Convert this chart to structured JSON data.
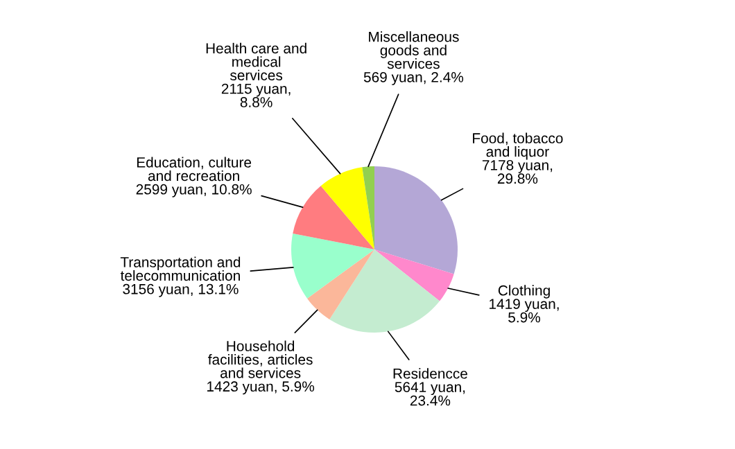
{
  "chart_data": {
    "type": "pie",
    "categories": [
      "Food, tobacco\nand liquor",
      "Clothing",
      "Residencce",
      "Household\nfacilities, articles\nand services",
      "Transportation and\ntelecommunication",
      "Education, culture\nand recreation",
      "Health care and\nmedical\nservices",
      "Miscellaneous\ngoods and\nservices"
    ],
    "values": [
      7178,
      1419,
      5641,
      1423,
      3156,
      2599,
      2115,
      569
    ],
    "value_labels": [
      "7178 yuan,\n29.8%",
      "1419 yuan,\n5.9%",
      "5641 yuan,\n23.4%",
      "1423 yuan, 5.9%",
      "3156 yuan, 13.1%",
      "2599 yuan, 10.8%",
      "2115 yuan,\n8.8%",
      "569 yuan, 2.4%"
    ],
    "colors": [
      "#b4a7d6",
      "#ff88cc",
      "#c4ecd0",
      "#fbb79a",
      "#99ffcc",
      "#ff7c80",
      "#ffff00",
      "#92d050"
    ],
    "legend": false
  }
}
